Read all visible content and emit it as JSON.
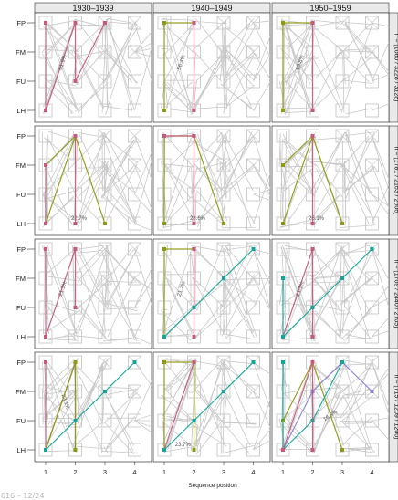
{
  "footer": "016 – 12/24",
  "colors": {
    "background_path": "#c8c8c8",
    "node_box_stroke": "#c8c8c8",
    "strip_fill": "#e9e9e9",
    "pink": "#c45b7c",
    "olive": "#8e9a13",
    "teal": "#12a69a",
    "purple": "#8a7fd6"
  },
  "chart_data": {
    "type": "sequence-path-plot (faceted grid)",
    "x_axis_label": "Sequence position",
    "x_ticks": [
      "1",
      "2",
      "3",
      "4"
    ],
    "y_ticks": [
      "FP",
      "FM",
      "FU",
      "LH"
    ],
    "columns": [
      "1930–1939",
      "1940–1949",
      "1950–1959"
    ],
    "rows": [
      "n = (1060 / 3228 / 3128)",
      "n = (1781 / 2163 / 2606)",
      "n = (1709 / 2440 / 2705)",
      "n = (715 / 1209 / 1200)"
    ],
    "panels": [
      {
        "row": 0,
        "col": 0,
        "highlighted": [
          {
            "color": "pink",
            "label": "61.9%",
            "path": [
              [
                1,
                "LH"
              ],
              [
                2,
                "FP"
              ]
            ]
          },
          {
            "color": "pink",
            "label": "",
            "path": [
              [
                1,
                "FP"
              ],
              [
                1,
                "LH"
              ]
            ]
          },
          {
            "color": "pink",
            "label": "",
            "path": [
              [
                2,
                "FP"
              ],
              [
                2,
                "FU"
              ]
            ]
          },
          {
            "color": "pink",
            "label": "",
            "path": [
              [
                2,
                "FU"
              ],
              [
                3,
                "FP"
              ]
            ]
          }
        ]
      },
      {
        "row": 0,
        "col": 1,
        "highlighted": [
          {
            "color": "olive",
            "label": "56.4%",
            "path": [
              [
                1,
                "LH"
              ],
              [
                1,
                "FP"
              ],
              [
                2,
                "FP"
              ]
            ]
          },
          {
            "color": "pink",
            "label": "",
            "path": [
              [
                2,
                "FP"
              ],
              [
                2,
                "LH"
              ]
            ]
          }
        ]
      },
      {
        "row": 0,
        "col": 2,
        "highlighted": [
          {
            "color": "olive",
            "label": "69.8%",
            "path": [
              [
                1,
                "LH"
              ],
              [
                1,
                "FP"
              ],
              [
                2,
                "FP"
              ]
            ]
          },
          {
            "color": "pink",
            "label": "",
            "path": [
              [
                2,
                "FP"
              ],
              [
                2,
                "LH"
              ]
            ]
          }
        ]
      },
      {
        "row": 1,
        "col": 0,
        "highlighted": [
          {
            "color": "olive",
            "label": "22.7%",
            "path": [
              [
                1,
                "LH"
              ],
              [
                2,
                "FP"
              ],
              [
                3,
                "LH"
              ]
            ]
          },
          {
            "color": "olive",
            "label": "",
            "path": [
              [
                1,
                "FM"
              ],
              [
                2,
                "FP"
              ]
            ]
          },
          {
            "color": "pink",
            "label": "",
            "path": [
              [
                1,
                "FM"
              ],
              [
                1,
                "LH"
              ]
            ]
          },
          {
            "color": "pink",
            "label": "",
            "path": [
              [
                2,
                "FP"
              ],
              [
                2,
                "LH"
              ]
            ]
          }
        ]
      },
      {
        "row": 1,
        "col": 1,
        "highlighted": [
          {
            "color": "olive",
            "label": "28.6%",
            "path": [
              [
                1,
                "LH"
              ],
              [
                1,
                "FP"
              ],
              [
                2,
                "FP"
              ],
              [
                3,
                "LH"
              ]
            ]
          },
          {
            "color": "pink",
            "label": "",
            "path": [
              [
                1,
                "FP"
              ],
              [
                2,
                "FP"
              ],
              [
                2,
                "LH"
              ]
            ]
          }
        ]
      },
      {
        "row": 1,
        "col": 2,
        "highlighted": [
          {
            "color": "olive",
            "label": "26.1%",
            "path": [
              [
                1,
                "LH"
              ],
              [
                2,
                "FP"
              ],
              [
                3,
                "LH"
              ]
            ]
          },
          {
            "color": "olive",
            "label": "",
            "path": [
              [
                1,
                "FM"
              ],
              [
                2,
                "FP"
              ]
            ]
          },
          {
            "color": "pink",
            "label": "",
            "path": [
              [
                2,
                "FP"
              ],
              [
                2,
                "LH"
              ]
            ]
          }
        ]
      },
      {
        "row": 2,
        "col": 0,
        "highlighted": [
          {
            "color": "pink",
            "label": "21.1%",
            "path": [
              [
                1,
                "LH"
              ],
              [
                2,
                "FP"
              ]
            ]
          },
          {
            "color": "pink",
            "label": "",
            "path": [
              [
                1,
                "FP"
              ],
              [
                1,
                "LH"
              ]
            ]
          },
          {
            "color": "pink",
            "label": "",
            "path": [
              [
                2,
                "FP"
              ],
              [
                2,
                "FU"
              ]
            ]
          }
        ]
      },
      {
        "row": 2,
        "col": 1,
        "highlighted": [
          {
            "color": "olive",
            "label": "21.2%",
            "path": [
              [
                1,
                "LH"
              ],
              [
                1,
                "FP"
              ],
              [
                2,
                "FP"
              ]
            ]
          },
          {
            "color": "pink",
            "label": "",
            "path": [
              [
                2,
                "FP"
              ],
              [
                2,
                "LH"
              ]
            ]
          },
          {
            "color": "teal",
            "label": "",
            "path": [
              [
                1,
                "LH"
              ],
              [
                2,
                "FU"
              ],
              [
                3,
                "FM"
              ],
              [
                4,
                "FP"
              ]
            ]
          }
        ]
      },
      {
        "row": 2,
        "col": 2,
        "highlighted": [
          {
            "color": "pink",
            "label": "21.1%",
            "path": [
              [
                1,
                "LH"
              ],
              [
                2,
                "FP"
              ]
            ]
          },
          {
            "color": "pink",
            "label": "",
            "path": [
              [
                2,
                "FP"
              ],
              [
                2,
                "LH"
              ]
            ]
          },
          {
            "color": "teal",
            "label": "",
            "path": [
              [
                1,
                "FM"
              ],
              [
                1,
                "LH"
              ],
              [
                2,
                "FU"
              ],
              [
                3,
                "FM"
              ],
              [
                4,
                "FP"
              ]
            ]
          }
        ]
      },
      {
        "row": 3,
        "col": 0,
        "highlighted": [
          {
            "color": "pink",
            "label": "23.1%",
            "path": [
              [
                1,
                "FP"
              ],
              [
                1,
                "LH"
              ],
              [
                2,
                "FP"
              ],
              [
                2,
                "LH"
              ]
            ]
          },
          {
            "color": "olive",
            "label": "",
            "path": [
              [
                1,
                "LH"
              ],
              [
                2,
                "FP"
              ],
              [
                2,
                "LH"
              ]
            ]
          },
          {
            "color": "teal",
            "label": "",
            "path": [
              [
                1,
                "LH"
              ],
              [
                2,
                "FU"
              ],
              [
                3,
                "FM"
              ],
              [
                4,
                "FP"
              ]
            ]
          }
        ]
      },
      {
        "row": 3,
        "col": 1,
        "highlighted": [
          {
            "color": "olive",
            "label": "23.7%",
            "path": [
              [
                1,
                "LH"
              ],
              [
                1,
                "FP"
              ],
              [
                2,
                "FP"
              ],
              [
                2,
                "LH"
              ]
            ]
          },
          {
            "color": "pink",
            "label": "",
            "path": [
              [
                1,
                "LH"
              ],
              [
                2,
                "FP"
              ]
            ]
          },
          {
            "color": "teal",
            "label": "",
            "path": [
              [
                1,
                "LH"
              ],
              [
                2,
                "FU"
              ],
              [
                3,
                "FM"
              ],
              [
                4,
                "FP"
              ]
            ]
          }
        ]
      },
      {
        "row": 3,
        "col": 2,
        "highlighted": [
          {
            "color": "purple",
            "label": "16.3%",
            "path": [
              [
                1,
                "LH"
              ],
              [
                2,
                "FM"
              ],
              [
                3,
                "FP"
              ],
              [
                4,
                "FM"
              ]
            ]
          },
          {
            "color": "olive",
            "label": "",
            "path": [
              [
                1,
                "LH"
              ],
              [
                1,
                "FU"
              ],
              [
                2,
                "FP"
              ],
              [
                3,
                "LH"
              ]
            ]
          },
          {
            "color": "teal",
            "label": "",
            "path": [
              [
                1,
                "FP"
              ],
              [
                1,
                "LH"
              ],
              [
                2,
                "FU"
              ],
              [
                3,
                "FP"
              ]
            ]
          },
          {
            "color": "pink",
            "label": "",
            "path": [
              [
                1,
                "LH"
              ],
              [
                2,
                "FP"
              ],
              [
                2,
                "LH"
              ]
            ]
          }
        ]
      }
    ]
  }
}
